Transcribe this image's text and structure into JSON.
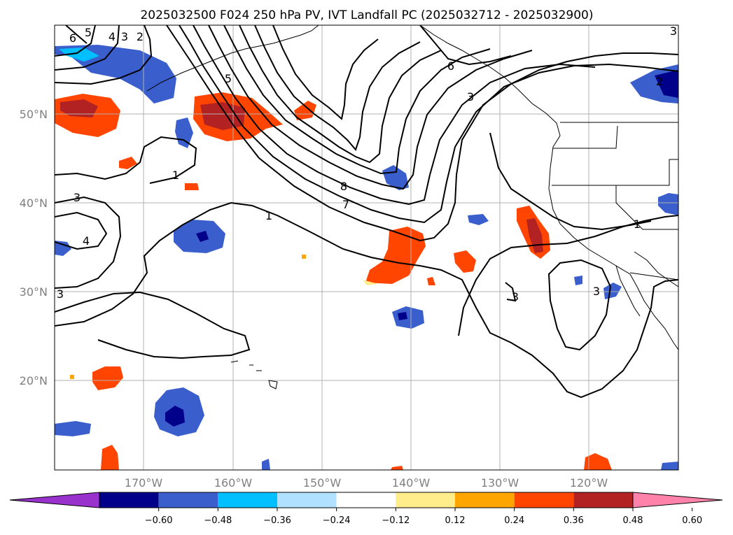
{
  "title": "2025032500 F024 250 hPa PV, IVT Landfall PC (2025032712 - 2025032900)",
  "lat_labels": [
    "50°N",
    "40°N",
    "30°N",
    "20°N"
  ],
  "lon_labels": [
    "170°W",
    "160°W",
    "150°W",
    "140°W",
    "130°W",
    "120°W"
  ],
  "colorbar": {
    "ticks": [
      "−0.60",
      "−0.48",
      "−0.36",
      "−0.24",
      "−0.12",
      "0.12",
      "0.24",
      "0.36",
      "0.48",
      "0.60"
    ],
    "colors": [
      "#9932cc",
      "#00008b",
      "#3a5fcd",
      "#00bfff",
      "#b0e2ff",
      "#ffffff",
      "#ffec8b",
      "#ffa500",
      "#ff4500",
      "#b22222",
      "#ff82ab"
    ]
  },
  "contour_labels": [
    "6",
    "5",
    "4",
    "3",
    "2",
    "5",
    "6",
    "3",
    "8",
    "7",
    "1",
    "1",
    "3",
    "4",
    "3",
    "3",
    "3",
    "1",
    "2",
    "3"
  ]
}
